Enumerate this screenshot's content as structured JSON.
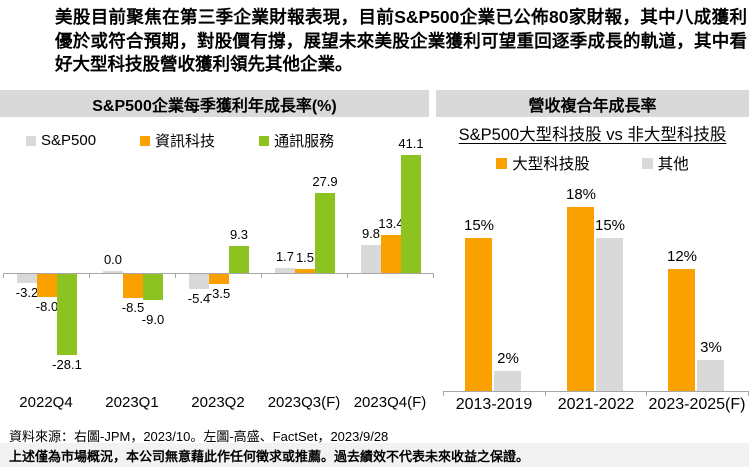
{
  "header": {
    "paragraph": "美股目前聚焦在第三季企業財報表現，目前S&P500企業已公佈80家財報，其中八成獲利優於或符合預期，對股價有撐，展望未來美股企業獲利可望重回逐季成長的軌道，其中看好大型科技股營收獲利領先其他企業。"
  },
  "chart_data": [
    {
      "type": "bar",
      "title": "S&P500企業每季獲利年成長率(%)",
      "categories": [
        "2022Q4",
        "2023Q1",
        "2023Q2",
        "2023Q3(F)",
        "2023Q4(F)"
      ],
      "series": [
        {
          "name": "S&P500",
          "color": "#D9D9D9",
          "values": [
            -3.2,
            0.0,
            -5.4,
            1.7,
            9.8
          ],
          "labels": [
            "-3.2",
            "0.0",
            "-5.4",
            "1.7",
            "9.8"
          ]
        },
        {
          "name": "資訊科技",
          "color": "#FAA000",
          "values": [
            -8.0,
            -8.5,
            -3.5,
            1.5,
            13.4
          ],
          "labels": [
            "-8.0",
            "-8.5",
            "-3.5",
            "1.5",
            "13.4"
          ]
        },
        {
          "name": "通訊服務",
          "color": "#8CC321",
          "values": [
            -28.1,
            -9.0,
            9.3,
            27.9,
            41.1
          ],
          "labels": [
            "-28.1",
            "-9.0",
            "9.3",
            "27.9",
            "41.1"
          ]
        }
      ],
      "xlabel": "",
      "ylabel": "",
      "ylim": [
        -35,
        45
      ],
      "grid": false,
      "legend_position": "top"
    },
    {
      "type": "bar",
      "title": "營收複合年成長率",
      "subtitle": "S&P500大型科技股 vs 非大型科技股",
      "categories": [
        "2013-2019",
        "2021-2022",
        "2023-2025(F)"
      ],
      "series": [
        {
          "name": "大型科技股",
          "color": "#FAA000",
          "values": [
            15,
            18,
            12
          ],
          "labels": [
            "15%",
            "18%",
            "12%"
          ]
        },
        {
          "name": "其他",
          "color": "#D9D9D9",
          "values": [
            2,
            15,
            3
          ],
          "labels": [
            "2%",
            "15%",
            "3%"
          ]
        }
      ],
      "xlabel": "",
      "ylabel": "",
      "ylim": [
        0,
        20
      ],
      "grid": false,
      "legend_position": "top"
    }
  ],
  "footer": {
    "source_prefix": "資料來源：右圖-JPM，2023/10。左圖-高盛、",
    "source_highlight": "FactSet",
    "source_suffix": "，2023/9/28",
    "disclaimer": "上述僅為市場概況，本公司無意藉此作任何徵求或推薦。過去績效不代表未來收益之保證。"
  },
  "colors": {
    "accent_orange": "#FAA000",
    "accent_green": "#8CC321",
    "neutral_gray": "#D9D9D9",
    "banner_bg": "#D9D9D9",
    "axis": "#A6A6A6",
    "disclaimer_band_bg": "#F2F2F2",
    "spellcheck_red": "#FF2A00"
  }
}
